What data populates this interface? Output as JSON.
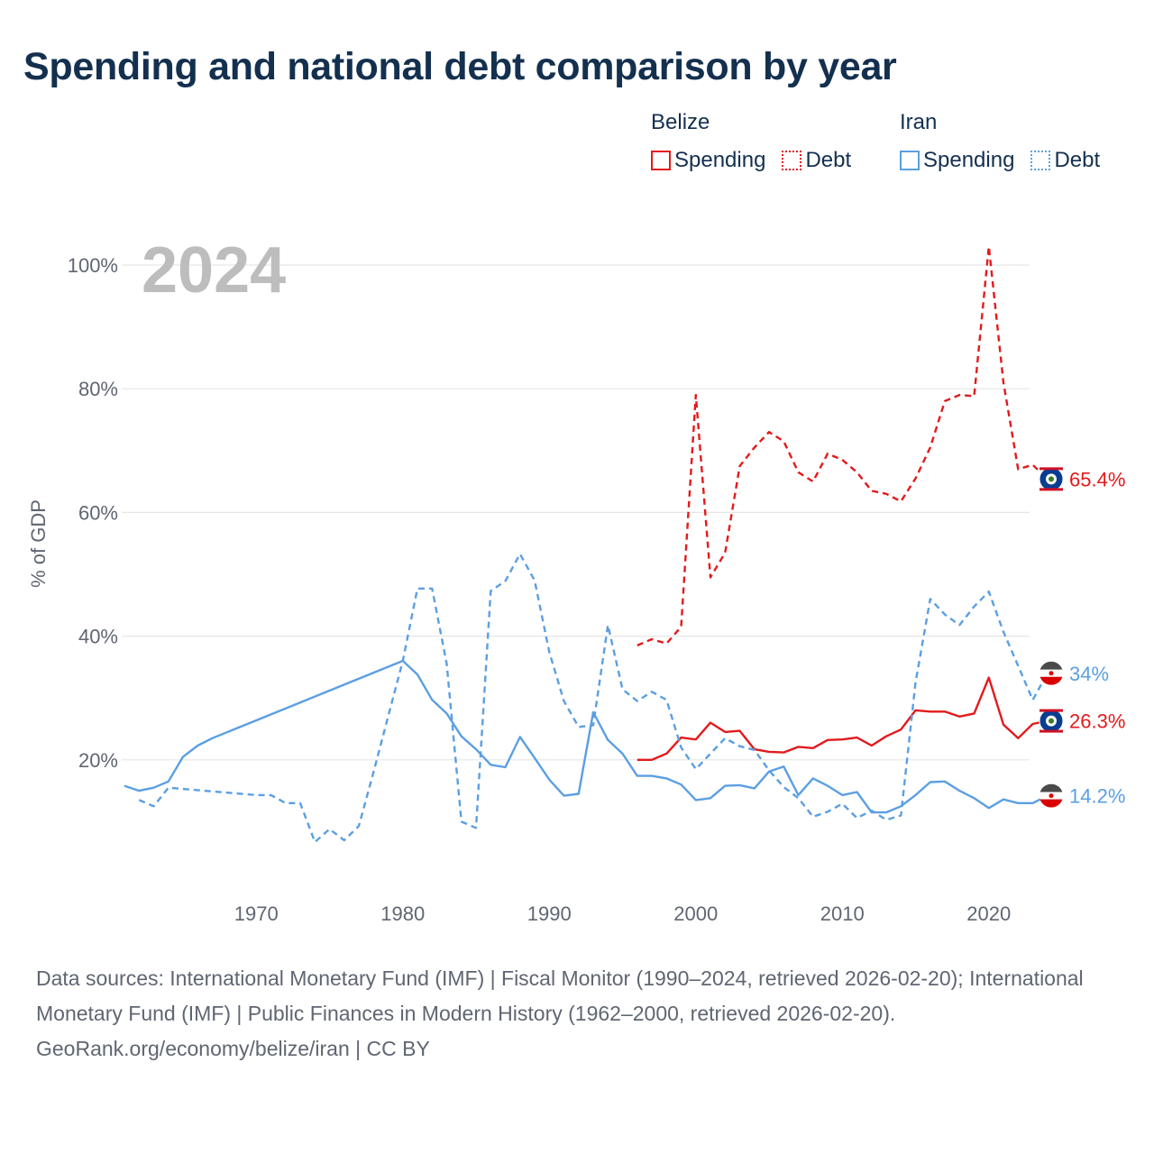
{
  "title": "Spending and national debt comparison by year",
  "legend": {
    "groups": [
      {
        "name": "Belize",
        "color": "#e31a1c",
        "items": [
          {
            "label": "Spending",
            "style": "solid"
          },
          {
            "label": "Debt",
            "style": "dotted"
          }
        ]
      },
      {
        "name": "Iran",
        "color": "#5b9fe2",
        "items": [
          {
            "label": "Spending",
            "style": "solid"
          },
          {
            "label": "Debt",
            "style": "dotted"
          }
        ]
      }
    ]
  },
  "chart_data": {
    "type": "line",
    "year_label": "2024",
    "ylabel": "% of GDP",
    "xlim": [
      1961,
      2025
    ],
    "ylim": [
      0,
      110
    ],
    "x_ticks": [
      1970,
      1980,
      1990,
      2000,
      2010,
      2020
    ],
    "x_tick_labels": [
      "1970",
      "1980",
      "1990",
      "2000",
      "2010",
      "2020"
    ],
    "y_ticks": [
      20,
      40,
      60,
      80,
      100
    ],
    "y_tick_labels": [
      "20%",
      "40%",
      "60%",
      "80%",
      "100%"
    ],
    "series": [
      {
        "name": "Belize Debt",
        "country": "Belize",
        "color": "#e31a1c",
        "dash": true,
        "end_label": "65.4%",
        "flag": "belize-flag-icon",
        "points": [
          [
            1996,
            38.5
          ],
          [
            1997,
            39.5
          ],
          [
            1998,
            38.8
          ],
          [
            1999,
            41.5
          ],
          [
            2000,
            79
          ],
          [
            2001,
            49.5
          ],
          [
            2002,
            53.5
          ],
          [
            2003,
            67.5
          ],
          [
            2004,
            70.5
          ],
          [
            2005,
            73
          ],
          [
            2006,
            71.5
          ],
          [
            2007,
            66.5
          ],
          [
            2008,
            65
          ],
          [
            2009,
            69.5
          ],
          [
            2010,
            68.5
          ],
          [
            2011,
            66.5
          ],
          [
            2012,
            63.5
          ],
          [
            2013,
            63
          ],
          [
            2014,
            61.8
          ],
          [
            2015,
            65.5
          ],
          [
            2016,
            70.5
          ],
          [
            2017,
            78
          ],
          [
            2018,
            79
          ],
          [
            2019,
            78.8
          ],
          [
            2020,
            103
          ],
          [
            2021,
            81
          ],
          [
            2022,
            67
          ],
          [
            2023,
            67.7
          ],
          [
            2024,
            65.4
          ]
        ]
      },
      {
        "name": "Belize Spending",
        "country": "Belize",
        "color": "#e31a1c",
        "dash": false,
        "end_label": "26.3%",
        "flag": "belize-flag-icon",
        "points": [
          [
            1996,
            20
          ],
          [
            1997,
            20
          ],
          [
            1998,
            21
          ],
          [
            1999,
            23.6
          ],
          [
            2000,
            23.3
          ],
          [
            2001,
            26
          ],
          [
            2002,
            24.5
          ],
          [
            2003,
            24.7
          ],
          [
            2004,
            21.7
          ],
          [
            2005,
            21.3
          ],
          [
            2006,
            21.2
          ],
          [
            2007,
            22.1
          ],
          [
            2008,
            21.9
          ],
          [
            2009,
            23.2
          ],
          [
            2010,
            23.3
          ],
          [
            2011,
            23.6
          ],
          [
            2012,
            22.3
          ],
          [
            2013,
            23.8
          ],
          [
            2014,
            24.9
          ],
          [
            2015,
            28
          ],
          [
            2016,
            27.8
          ],
          [
            2017,
            27.8
          ],
          [
            2018,
            27
          ],
          [
            2019,
            27.5
          ],
          [
            2020,
            33.3
          ],
          [
            2021,
            25.7
          ],
          [
            2022,
            23.5
          ],
          [
            2023,
            25.8
          ],
          [
            2024,
            26.3
          ]
        ]
      },
      {
        "name": "Iran Debt",
        "country": "Iran",
        "color": "#5b9fe2",
        "dash": true,
        "end_label": "34%",
        "flag": "iran-flag-icon",
        "points": [
          [
            1962,
            13.5
          ],
          [
            1963,
            12.5
          ],
          [
            1964,
            15.5
          ],
          [
            1970,
            14.3
          ],
          [
            1971,
            14.3
          ],
          [
            1972,
            13
          ],
          [
            1973,
            13
          ],
          [
            1974,
            6.7
          ],
          [
            1975,
            8.8
          ],
          [
            1976,
            7
          ],
          [
            1977,
            9.3
          ],
          [
            1978,
            18
          ],
          [
            1979,
            27
          ],
          [
            1980,
            36
          ],
          [
            1981,
            47.7
          ],
          [
            1982,
            47.7
          ],
          [
            1983,
            35.5
          ],
          [
            1984,
            10
          ],
          [
            1985,
            9
          ],
          [
            1986,
            47.3
          ],
          [
            1987,
            48.9
          ],
          [
            1988,
            53.3
          ],
          [
            1989,
            49
          ],
          [
            1990,
            37.4
          ],
          [
            1991,
            29.5
          ],
          [
            1992,
            25.3
          ],
          [
            1993,
            25.6
          ],
          [
            1994,
            41.8
          ],
          [
            1995,
            31.4
          ],
          [
            1996,
            29.5
          ],
          [
            1997,
            31
          ],
          [
            1998,
            29.7
          ],
          [
            1999,
            22
          ],
          [
            2000,
            18.5
          ],
          [
            2001,
            21
          ],
          [
            2002,
            23.5
          ],
          [
            2003,
            22.2
          ],
          [
            2004,
            21.6
          ],
          [
            2005,
            18.3
          ],
          [
            2006,
            15.6
          ],
          [
            2007,
            13.8
          ],
          [
            2008,
            10.8
          ],
          [
            2009,
            11.6
          ],
          [
            2010,
            12.9
          ],
          [
            2011,
            10.6
          ],
          [
            2012,
            11.8
          ],
          [
            2013,
            10.3
          ],
          [
            2014,
            11
          ],
          [
            2015,
            32.5
          ],
          [
            2016,
            46
          ],
          [
            2017,
            43.5
          ],
          [
            2018,
            41.8
          ],
          [
            2019,
            44.8
          ],
          [
            2020,
            47.2
          ],
          [
            2021,
            40.7
          ],
          [
            2022,
            35.2
          ],
          [
            2023,
            29.7
          ],
          [
            2024,
            34
          ]
        ]
      },
      {
        "name": "Iran Spending",
        "country": "Iran",
        "color": "#5b9fe2",
        "dash": false,
        "end_label": "14.2%",
        "flag": "iran-flag-icon",
        "points": [
          [
            1961,
            15.8
          ],
          [
            1962,
            15
          ],
          [
            1963,
            15.5
          ],
          [
            1964,
            16.5
          ],
          [
            1965,
            20.5
          ],
          [
            1966,
            22.3
          ],
          [
            1967,
            23.5
          ],
          [
            1980,
            36
          ],
          [
            1981,
            33.8
          ],
          [
            1982,
            29.7
          ],
          [
            1983,
            27.5
          ],
          [
            1984,
            23.8
          ],
          [
            1985,
            21.7
          ],
          [
            1986,
            19.2
          ],
          [
            1987,
            18.8
          ],
          [
            1988,
            23.7
          ],
          [
            1989,
            20.3
          ],
          [
            1990,
            16.8
          ],
          [
            1991,
            14.2
          ],
          [
            1992,
            14.5
          ],
          [
            1993,
            27.7
          ],
          [
            1994,
            23.2
          ],
          [
            1995,
            21
          ],
          [
            1996,
            17.4
          ],
          [
            1997,
            17.4
          ],
          [
            1998,
            17
          ],
          [
            1999,
            16
          ],
          [
            2000,
            13.5
          ],
          [
            2001,
            13.8
          ],
          [
            2002,
            15.8
          ],
          [
            2003,
            15.9
          ],
          [
            2004,
            15.4
          ],
          [
            2005,
            18.1
          ],
          [
            2006,
            18.9
          ],
          [
            2007,
            14.3
          ],
          [
            2008,
            17
          ],
          [
            2009,
            15.8
          ],
          [
            2010,
            14.3
          ],
          [
            2011,
            14.8
          ],
          [
            2012,
            11.5
          ],
          [
            2013,
            11.5
          ],
          [
            2014,
            12.5
          ],
          [
            2015,
            14.3
          ],
          [
            2016,
            16.4
          ],
          [
            2017,
            16.5
          ],
          [
            2018,
            15
          ],
          [
            2019,
            13.8
          ],
          [
            2020,
            12.2
          ],
          [
            2021,
            13.6
          ],
          [
            2022,
            13
          ],
          [
            2023,
            13
          ],
          [
            2024,
            14.2
          ]
        ]
      }
    ]
  },
  "footer": {
    "sources": "Data sources: International Monetary Fund (IMF) | Fiscal Monitor (1990–2024, retrieved 2026-02-20); International Monetary Fund (IMF) | Public Finances in Modern History (1962–2000, retrieved 2026-02-20).",
    "credit": "GeoRank.org/economy/belize/iran | CC BY"
  }
}
